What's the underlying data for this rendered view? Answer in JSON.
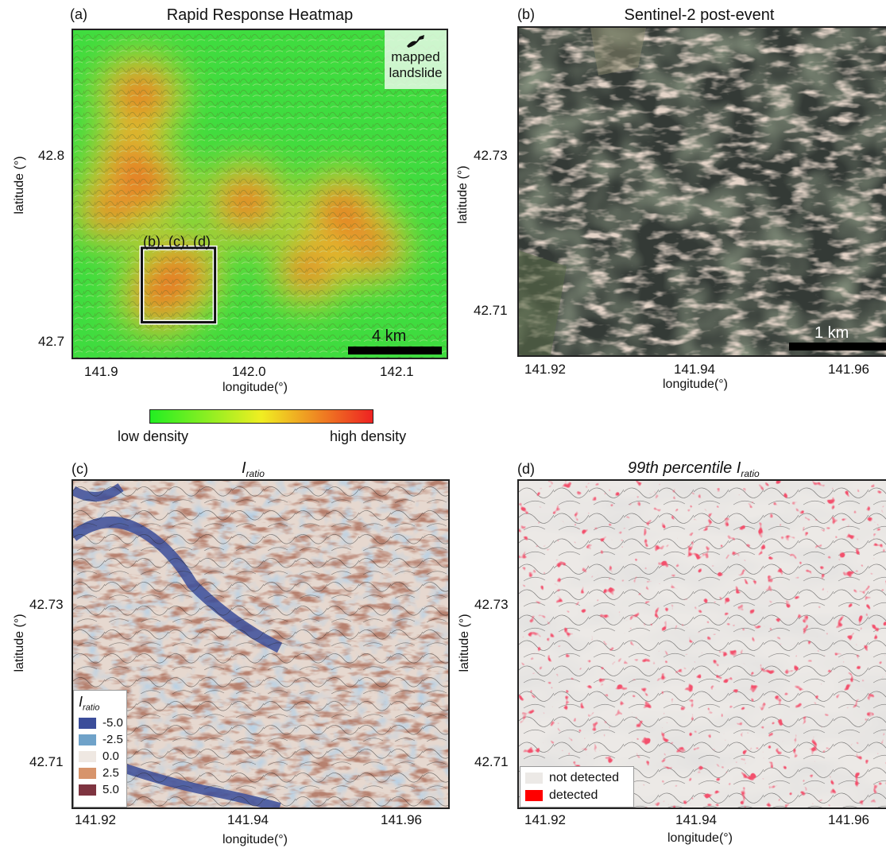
{
  "panels": {
    "a": {
      "letter": "(a)",
      "title": "Rapid Response Heatmap",
      "xlabel": "longitude(°)",
      "ylabel": "latitude (°)",
      "xticks": [
        "141.9",
        "142.0",
        "142.1"
      ],
      "yticks": [
        "42.8",
        "42.7"
      ],
      "scalebar": "4 km",
      "inset_label": "(b), (c), (d)",
      "legend_label_1": "mapped",
      "legend_label_2": "landslide",
      "icon": "landslide-polygon-icon"
    },
    "b": {
      "letter": "(b)",
      "title": "Sentinel-2 post-event",
      "xlabel": "longitude(°)",
      "ylabel": "latitude (°)",
      "xticks": [
        "141.92",
        "141.94",
        "141.96"
      ],
      "yticks": [
        "42.73",
        "42.71"
      ],
      "scalebar": "1 km"
    },
    "c": {
      "letter": "(c)",
      "title_main": "I",
      "title_sub": "ratio",
      "xlabel": "longitude(°)",
      "ylabel": "latitude (°)",
      "xticks": [
        "141.92",
        "141.94",
        "141.96"
      ],
      "yticks": [
        "42.73",
        "42.71"
      ],
      "legend": {
        "title_main": "I",
        "title_sub": "ratio",
        "items": [
          {
            "label": "-5.0",
            "color": "#3b4d9a"
          },
          {
            "label": "-2.5",
            "color": "#6fa2c9"
          },
          {
            "label": "0.0",
            "color": "#efe8e2"
          },
          {
            "label": "2.5",
            "color": "#d7946b"
          },
          {
            "label": "5.0",
            "color": "#7e3440"
          }
        ]
      }
    },
    "d": {
      "letter": "(d)",
      "title_main": "99th percentile I",
      "title_sub": "ratio",
      "xlabel": "longitude(°)",
      "ylabel": "latitude (°)",
      "xticks": [
        "141.92",
        "141.94",
        "141.96"
      ],
      "yticks": [
        "42.73",
        "42.71"
      ],
      "legend": [
        {
          "label": "not detected",
          "color": "#ece9e6"
        },
        {
          "label": "detected",
          "color": "#ff0000"
        }
      ]
    }
  },
  "colorbar": {
    "low_label": "low density",
    "high_label": "high density",
    "colors": [
      "#22ee22",
      "#f0ee22",
      "#ee2222"
    ]
  },
  "chart_data": [
    {
      "type": "heatmap",
      "title": "Rapid Response Heatmap",
      "xlabel": "longitude(°)",
      "ylabel": "latitude (°)",
      "xlim": [
        141.88,
        142.13
      ],
      "ylim": [
        42.69,
        42.875
      ],
      "hotspots": [
        {
          "lon": 141.925,
          "lat": 42.838,
          "intensity": 0.95
        },
        {
          "lon": 141.918,
          "lat": 42.801,
          "intensity": 0.7
        },
        {
          "lon": 141.93,
          "lat": 42.788,
          "intensity": 0.8
        },
        {
          "lon": 141.905,
          "lat": 42.774,
          "intensity": 0.6
        },
        {
          "lon": 141.996,
          "lat": 42.778,
          "intensity": 0.9
        },
        {
          "lon": 142.06,
          "lat": 42.772,
          "intensity": 0.95
        },
        {
          "lon": 142.08,
          "lat": 42.752,
          "intensity": 0.6
        },
        {
          "lon": 142.038,
          "lat": 42.74,
          "intensity": 0.65
        },
        {
          "lon": 141.95,
          "lat": 42.737,
          "intensity": 1.0
        },
        {
          "lon": 141.938,
          "lat": 42.725,
          "intensity": 0.8
        }
      ],
      "inset_box": {
        "lon": [
          141.926,
          141.975
        ],
        "lat": [
          42.71,
          42.752
        ]
      }
    },
    {
      "type": "heatmap",
      "title": "Sentinel-2 post-event",
      "xlim": [
        141.914,
        141.966
      ],
      "ylim": [
        42.705,
        42.742
      ]
    },
    {
      "type": "heatmap",
      "title": "Iratio",
      "xlim": [
        141.914,
        141.966
      ],
      "ylim": [
        42.705,
        42.742
      ],
      "levels": [
        -5.0,
        -2.5,
        0.0,
        2.5,
        5.0
      ]
    },
    {
      "type": "heatmap",
      "title": "99th percentile Iratio",
      "xlim": [
        141.914,
        141.966
      ],
      "ylim": [
        42.705,
        42.742
      ],
      "classes": [
        "not detected",
        "detected"
      ]
    }
  ]
}
